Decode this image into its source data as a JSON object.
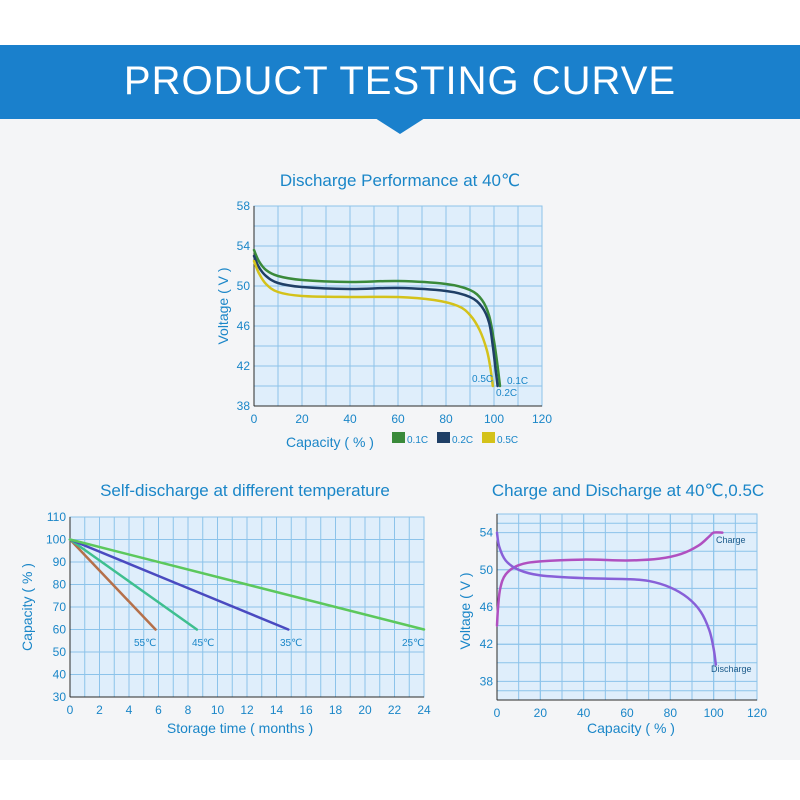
{
  "banner": {
    "title": "PRODUCT TESTING CURVE"
  },
  "chart_data": [
    {
      "id": "discharge",
      "type": "line",
      "title": "Discharge Performance at 40℃",
      "xlabel": "Capacity ( % )",
      "ylabel": "Voltage ( V )",
      "xlim": [
        0,
        120
      ],
      "ylim": [
        38,
        58
      ],
      "xticks": [
        0,
        20,
        40,
        60,
        80,
        100,
        120
      ],
      "yticks": [
        38,
        42,
        46,
        50,
        54,
        58
      ],
      "legend": [
        {
          "name": "0.1C",
          "color": "#3a8a3a"
        },
        {
          "name": "0.2C",
          "color": "#1f3f66"
        },
        {
          "name": "0.5C",
          "color": "#d4c21a"
        }
      ],
      "series": [
        {
          "name": "0.1C",
          "color": "#3a8a3a",
          "label": "0.1C",
          "points": [
            [
              0,
              53.6
            ],
            [
              2,
              52.5
            ],
            [
              5,
              51.6
            ],
            [
              10,
              51.0
            ],
            [
              20,
              50.6
            ],
            [
              40,
              50.4
            ],
            [
              60,
              50.5
            ],
            [
              80,
              50.2
            ],
            [
              90,
              49.6
            ],
            [
              95,
              48.6
            ],
            [
              98,
              47.0
            ],
            [
              100,
              44.5
            ],
            [
              101.5,
              42.0
            ],
            [
              102.5,
              40.0
            ]
          ]
        },
        {
          "name": "0.2C",
          "color": "#1f3f66",
          "label": "0.2C",
          "points": [
            [
              0,
              53.0
            ],
            [
              2,
              51.9
            ],
            [
              5,
              51.0
            ],
            [
              10,
              50.3
            ],
            [
              20,
              49.9
            ],
            [
              40,
              49.7
            ],
            [
              60,
              49.8
            ],
            [
              80,
              49.5
            ],
            [
              90,
              48.9
            ],
            [
              95,
              47.9
            ],
            [
              98,
              46.3
            ],
            [
              99.5,
              44.0
            ],
            [
              100.5,
              42.0
            ],
            [
              101.5,
              40.0
            ]
          ]
        },
        {
          "name": "0.5C",
          "color": "#d4c21a",
          "label": "0.5C",
          "points": [
            [
              0,
              52.5
            ],
            [
              2,
              51.3
            ],
            [
              5,
              50.2
            ],
            [
              10,
              49.4
            ],
            [
              20,
              49.0
            ],
            [
              40,
              48.9
            ],
            [
              60,
              48.9
            ],
            [
              75,
              48.6
            ],
            [
              85,
              48.0
            ],
            [
              90,
              47.1
            ],
            [
              94,
              45.6
            ],
            [
              97,
              43.6
            ],
            [
              98.5,
              41.8
            ],
            [
              99.5,
              40.0
            ]
          ]
        }
      ]
    },
    {
      "id": "self-discharge",
      "type": "line",
      "title": "Self-discharge at different temperature",
      "xlabel": "Storage time ( months )",
      "ylabel": "Capacity ( % )",
      "xlim": [
        0,
        24
      ],
      "ylim": [
        30,
        110
      ],
      "xticks": [
        0,
        2,
        4,
        6,
        8,
        10,
        12,
        14,
        16,
        18,
        20,
        22,
        24
      ],
      "yticks": [
        30,
        40,
        50,
        60,
        70,
        80,
        90,
        100,
        110
      ],
      "series": [
        {
          "name": "55℃",
          "color": "#b5704a",
          "label": "55℃",
          "points": [
            [
              0,
              100
            ],
            [
              5.8,
              60
            ]
          ]
        },
        {
          "name": "45℃",
          "color": "#3fbf8f",
          "label": "45℃",
          "points": [
            [
              0,
              100
            ],
            [
              8.6,
              60
            ]
          ]
        },
        {
          "name": "35℃",
          "color": "#4a4ac0",
          "label": "35℃",
          "points": [
            [
              0,
              100
            ],
            [
              14.8,
              60
            ]
          ]
        },
        {
          "name": "25℃",
          "color": "#5cc85c",
          "label": "25℃",
          "points": [
            [
              0,
              100
            ],
            [
              24,
              60
            ]
          ]
        }
      ]
    },
    {
      "id": "charge-discharge",
      "type": "line",
      "title": "Charge and Discharge at 40℃,0.5C",
      "xlabel": "Capacity ( % )",
      "ylabel": "Voltage ( V )",
      "xlim": [
        0,
        120
      ],
      "ylim": [
        36,
        56
      ],
      "xticks": [
        0,
        20,
        40,
        60,
        80,
        100,
        120
      ],
      "yticks": [
        38,
        42,
        46,
        50,
        54
      ],
      "series": [
        {
          "name": "Charge",
          "color": "#b050c0",
          "label": "Charge",
          "points": [
            [
              0,
              44.0
            ],
            [
              0.5,
              46.0
            ],
            [
              1.5,
              48.0
            ],
            [
              4,
              49.5
            ],
            [
              10,
              50.5
            ],
            [
              20,
              50.9
            ],
            [
              40,
              51.1
            ],
            [
              60,
              51.0
            ],
            [
              75,
              51.2
            ],
            [
              85,
              51.7
            ],
            [
              93,
              52.6
            ],
            [
              98,
              53.6
            ],
            [
              100,
              54.0
            ],
            [
              104,
              54.0
            ]
          ]
        },
        {
          "name": "Discharge",
          "color": "#8860d8",
          "label": "Discharge",
          "points": [
            [
              0,
              54.0
            ],
            [
              1,
              52.5
            ],
            [
              4,
              51.0
            ],
            [
              10,
              50.0
            ],
            [
              20,
              49.4
            ],
            [
              40,
              49.1
            ],
            [
              60,
              49.0
            ],
            [
              70,
              48.8
            ],
            [
              80,
              48.1
            ],
            [
              88,
              47.0
            ],
            [
              94,
              45.5
            ],
            [
              98,
              43.5
            ],
            [
              100,
              41.5
            ],
            [
              101,
              39.8
            ]
          ]
        }
      ]
    }
  ]
}
